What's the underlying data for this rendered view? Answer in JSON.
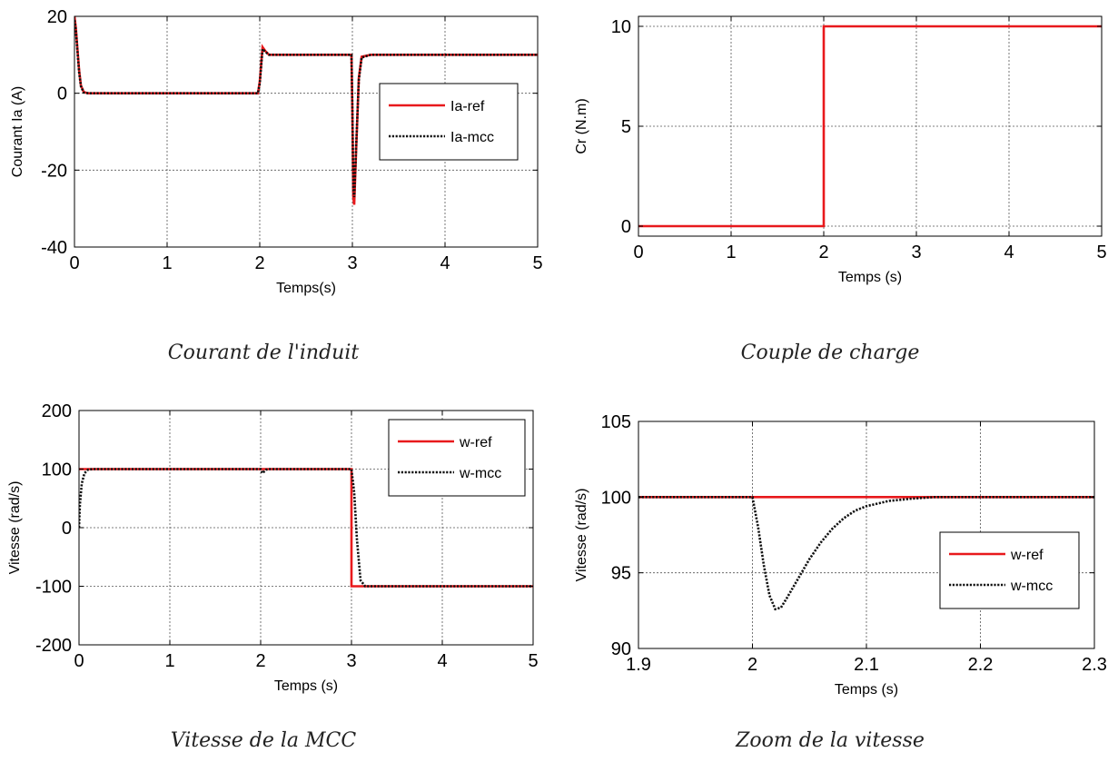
{
  "captions": [
    "Courant de l'induit",
    "Couple de charge",
    "Vitesse de la MCC",
    "Zoom de la vitesse"
  ],
  "colors": {
    "ref": "#e8191c",
    "meas": "#111111",
    "grid": "#555555",
    "axis": "#000000"
  },
  "chart_data": [
    {
      "type": "line",
      "xlabel": "Temps(s)",
      "ylabel": "Courant Ia (A)",
      "xlim": [
        0,
        5
      ],
      "ylim": [
        -40,
        20
      ],
      "xticks": [
        0,
        1,
        2,
        3,
        4,
        5
      ],
      "yticks": [
        -40,
        -20,
        0,
        20
      ],
      "grid": true,
      "legend": "center-right",
      "series": [
        {
          "name": "Ia-ref",
          "style": "solid",
          "x": [
            0,
            0.015,
            0.03,
            0.05,
            0.07,
            0.1,
            0.15,
            0.2,
            1.98,
            2.0,
            2.03,
            2.06,
            2.1,
            2.2,
            2.99,
            3.0,
            3.01,
            3.02,
            3.04,
            3.07,
            3.1,
            3.2,
            5
          ],
          "y": [
            20,
            17,
            12,
            6,
            2,
            0.3,
            0,
            0,
            0,
            3,
            12,
            11,
            10,
            10,
            10,
            -5,
            -27,
            -29,
            -15,
            4,
            9.5,
            10,
            10
          ]
        },
        {
          "name": "Ia-mcc",
          "style": "dotted",
          "x": [
            0,
            0.015,
            0.03,
            0.05,
            0.07,
            0.1,
            0.15,
            0.2,
            1.98,
            2.0,
            2.03,
            2.06,
            2.1,
            2.2,
            2.99,
            3.0,
            3.01,
            3.02,
            3.04,
            3.07,
            3.1,
            3.2,
            5
          ],
          "y": [
            19,
            16.5,
            11.5,
            5.5,
            1.8,
            0.2,
            0,
            0,
            0,
            2.5,
            11.5,
            10.8,
            10,
            10,
            10,
            -4,
            -25,
            -27,
            -14,
            3.5,
            9.3,
            10,
            10
          ]
        }
      ]
    },
    {
      "type": "line",
      "xlabel": "Temps (s)",
      "ylabel": "Cr (N.m)",
      "xlim": [
        0,
        5
      ],
      "ylim": [
        -0.5,
        10.5
      ],
      "xticks": [
        0,
        1,
        2,
        3,
        4,
        5
      ],
      "yticks": [
        0,
        5,
        10
      ],
      "grid": true,
      "legend": "none",
      "series": [
        {
          "style": "solid",
          "x": [
            0,
            2,
            2,
            5
          ],
          "y": [
            0,
            0,
            10,
            10
          ]
        }
      ]
    },
    {
      "type": "line",
      "xlabel": "Temps (s)",
      "ylabel": "Vitesse (rad/s)",
      "xlim": [
        0,
        5
      ],
      "ylim": [
        -200,
        200
      ],
      "xticks": [
        0,
        1,
        2,
        3,
        4,
        5
      ],
      "yticks": [
        -200,
        -100,
        0,
        100,
        200
      ],
      "grid": true,
      "legend": "top-right",
      "series": [
        {
          "name": "w-ref",
          "style": "solid",
          "x": [
            0,
            3,
            3,
            5
          ],
          "y": [
            100,
            100,
            -100,
            -100
          ]
        },
        {
          "name": "w-mcc",
          "style": "dotted",
          "x": [
            0,
            0.01,
            0.03,
            0.06,
            0.1,
            0.15,
            0.2,
            1.98,
            2.0,
            2.02,
            2.06,
            2.1,
            3.0,
            3.03,
            3.06,
            3.1,
            3.15,
            5
          ],
          "y": [
            0,
            40,
            75,
            93,
            99,
            100,
            100,
            100,
            100,
            93,
            99,
            100,
            100,
            60,
            -20,
            -90,
            -100,
            -100
          ]
        }
      ]
    },
    {
      "type": "line",
      "xlabel": "Temps (s)",
      "ylabel": "Vitesse (rad/s)",
      "xlim": [
        1.9,
        2.3
      ],
      "ylim": [
        90,
        105
      ],
      "xticks": [
        1.9,
        2,
        2.1,
        2.2,
        2.3
      ],
      "yticks": [
        90,
        95,
        100,
        105
      ],
      "grid": true,
      "legend": "center-right",
      "series": [
        {
          "name": "w-ref",
          "style": "solid",
          "x": [
            1.9,
            2.3
          ],
          "y": [
            100,
            100
          ]
        },
        {
          "name": "w-mcc",
          "style": "dotted",
          "x": [
            1.9,
            2.0,
            2.005,
            2.01,
            2.015,
            2.02,
            2.025,
            2.03,
            2.04,
            2.05,
            2.06,
            2.07,
            2.08,
            2.09,
            2.1,
            2.12,
            2.14,
            2.16,
            2.2,
            2.3
          ],
          "y": [
            100,
            100,
            98,
            95.5,
            93.5,
            92.6,
            92.7,
            93.3,
            94.6,
            95.9,
            97.0,
            97.9,
            98.6,
            99.1,
            99.4,
            99.75,
            99.9,
            100,
            100,
            100
          ]
        }
      ]
    }
  ]
}
